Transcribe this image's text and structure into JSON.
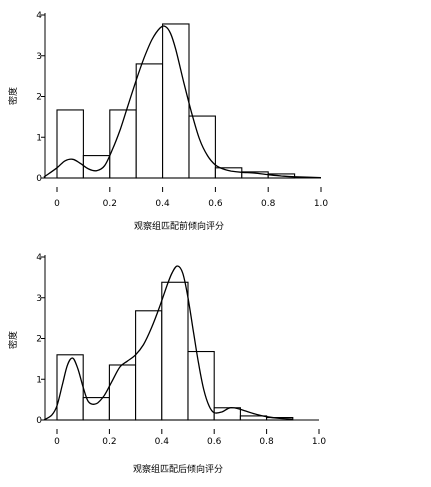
{
  "chart_data": [
    {
      "type": "bar",
      "overlay": "line",
      "xlabel": "观察组匹配前倾向评分",
      "ylabel": "密度",
      "xlim": [
        0,
        1.0
      ],
      "ylim": [
        0,
        4
      ],
      "xticks": [
        "0",
        "0.2",
        "0.4",
        "0.6",
        "0.8",
        "1.0"
      ],
      "yticks": [
        "0",
        "1",
        "2",
        "3",
        "4"
      ],
      "grid": false,
      "bins": [
        {
          "x0": 0.0,
          "x1": 0.1,
          "value": 1.67
        },
        {
          "x0": 0.1,
          "x1": 0.2,
          "value": 0.55
        },
        {
          "x0": 0.2,
          "x1": 0.3,
          "value": 1.67
        },
        {
          "x0": 0.3,
          "x1": 0.4,
          "value": 2.8
        },
        {
          "x0": 0.4,
          "x1": 0.5,
          "value": 3.78
        },
        {
          "x0": 0.5,
          "x1": 0.6,
          "value": 1.52
        },
        {
          "x0": 0.6,
          "x1": 0.7,
          "value": 0.25
        },
        {
          "x0": 0.7,
          "x1": 0.8,
          "value": 0.15
        },
        {
          "x0": 0.8,
          "x1": 0.9,
          "value": 0.1
        }
      ],
      "density": {
        "x": [
          -0.05,
          0.0,
          0.03,
          0.06,
          0.09,
          0.12,
          0.15,
          0.18,
          0.21,
          0.24,
          0.27,
          0.3,
          0.33,
          0.36,
          0.39,
          0.41,
          0.43,
          0.45,
          0.48,
          0.51,
          0.54,
          0.57,
          0.6,
          0.63,
          0.66,
          0.7,
          0.75,
          0.8,
          0.85,
          0.9,
          1.0
        ],
        "y": [
          0.02,
          0.25,
          0.42,
          0.46,
          0.35,
          0.22,
          0.18,
          0.3,
          0.7,
          1.2,
          1.8,
          2.4,
          2.95,
          3.4,
          3.68,
          3.72,
          3.55,
          3.15,
          2.35,
          1.6,
          0.95,
          0.55,
          0.32,
          0.22,
          0.17,
          0.14,
          0.12,
          0.08,
          0.05,
          0.03,
          0.01
        ]
      }
    },
    {
      "type": "bar",
      "overlay": "line",
      "xlabel": "观察组匹配后倾向评分",
      "ylabel": "密度",
      "xlim": [
        0,
        1.0
      ],
      "ylim": [
        0,
        4
      ],
      "xticks": [
        "0",
        "0.2",
        "0.4",
        "0.6",
        "0.8",
        "1.0"
      ],
      "yticks": [
        "0",
        "1",
        "2",
        "3",
        "4"
      ],
      "grid": false,
      "bins": [
        {
          "x0": 0.0,
          "x1": 0.1,
          "value": 1.6
        },
        {
          "x0": 0.1,
          "x1": 0.2,
          "value": 0.55
        },
        {
          "x0": 0.2,
          "x1": 0.3,
          "value": 1.35
        },
        {
          "x0": 0.3,
          "x1": 0.4,
          "value": 2.68
        },
        {
          "x0": 0.4,
          "x1": 0.5,
          "value": 3.38
        },
        {
          "x0": 0.5,
          "x1": 0.6,
          "value": 1.68
        },
        {
          "x0": 0.6,
          "x1": 0.7,
          "value": 0.3
        },
        {
          "x0": 0.7,
          "x1": 0.8,
          "value": 0.1
        },
        {
          "x0": 0.8,
          "x1": 0.9,
          "value": 0.06
        }
      ],
      "density": {
        "x": [
          -0.05,
          -0.02,
          0.0,
          0.02,
          0.04,
          0.06,
          0.08,
          0.1,
          0.12,
          0.15,
          0.18,
          0.21,
          0.24,
          0.27,
          0.3,
          0.33,
          0.36,
          0.39,
          0.42,
          0.44,
          0.46,
          0.48,
          0.5,
          0.52,
          0.54,
          0.56,
          0.58,
          0.6,
          0.63,
          0.66,
          0.69,
          0.72,
          0.76,
          0.8,
          0.85,
          0.9
        ],
        "y": [
          0.0,
          0.12,
          0.35,
          0.85,
          1.35,
          1.52,
          1.25,
          0.8,
          0.45,
          0.4,
          0.6,
          0.95,
          1.3,
          1.45,
          1.6,
          1.85,
          2.25,
          2.75,
          3.3,
          3.62,
          3.78,
          3.6,
          3.0,
          2.2,
          1.4,
          0.75,
          0.35,
          0.18,
          0.2,
          0.3,
          0.28,
          0.22,
          0.14,
          0.08,
          0.04,
          0.02
        ]
      }
    }
  ]
}
